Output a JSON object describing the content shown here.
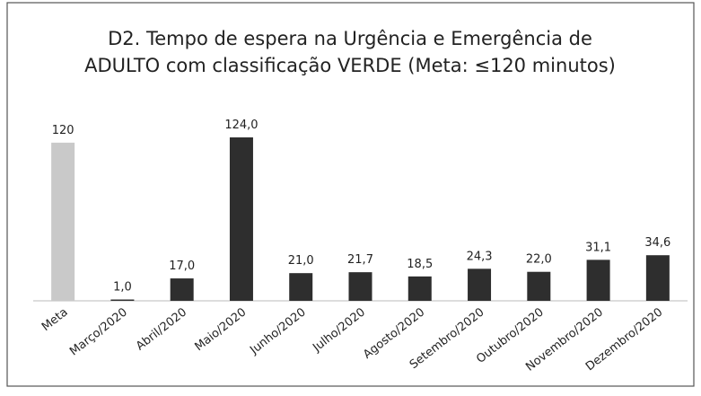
{
  "chart_data": {
    "type": "bar",
    "title": "D2. Tempo de espera na Urgência e Emergência de ADULTO com classificação VERDE  (Meta: ≤120 minutos)",
    "categories": [
      "Meta",
      "Março/2020",
      "Abril/2020",
      "Maio/2020",
      "Junho/2020",
      "Julho/2020",
      "Agosto/2020",
      "Setembro/2020",
      "Outubro/2020",
      "Novembro/2020",
      "Dezembro/2020"
    ],
    "values": [
      120,
      1.0,
      17.0,
      124.0,
      21.0,
      21.7,
      18.5,
      24.3,
      22.0,
      31.1,
      34.6
    ],
    "value_labels": [
      "120",
      "1,0",
      "17,0",
      "124,0",
      "21,0",
      "21,7",
      "18,5",
      "24,3",
      "22,0",
      "31,1",
      "34,6"
    ],
    "colors": [
      "#c9c9c9",
      "#2e2e2e",
      "#2e2e2e",
      "#2e2e2e",
      "#2e2e2e",
      "#2e2e2e",
      "#2e2e2e",
      "#2e2e2e",
      "#2e2e2e",
      "#2e2e2e",
      "#2e2e2e"
    ],
    "ylim": [
      0,
      124
    ]
  }
}
